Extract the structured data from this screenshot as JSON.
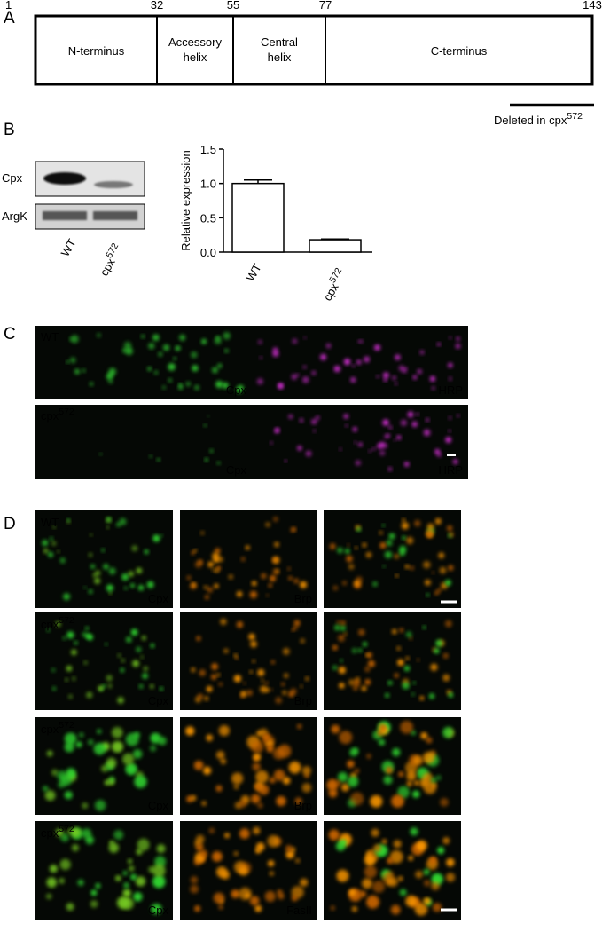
{
  "panel_a": {
    "label": "A",
    "residues": [
      1,
      32,
      55,
      77,
      143
    ],
    "domains": [
      "N-terminus",
      [
        "Accessory",
        "helix"
      ],
      [
        "Central",
        "helix"
      ],
      "C-terminus"
    ],
    "deleted": {
      "text": "Deleted in cpx",
      "sup": "572"
    }
  },
  "panel_b": {
    "label": "B",
    "blot_rows": [
      "Cpx",
      "ArgK"
    ],
    "lanes": [
      "WT",
      {
        "text": "cpx",
        "sup": "572"
      }
    ],
    "chart_data": {
      "type": "bar",
      "y_label": "Relative expression",
      "categories": [
        "WT",
        {
          "text": "cpx",
          "sup": "572"
        }
      ],
      "values": [
        1.0,
        0.18
      ],
      "errors": [
        0.05,
        0.01
      ],
      "color": "#ffffff",
      "ylim": [
        0,
        1.5
      ],
      "yticks": [
        {
          "value": 0,
          "label": "0.0"
        },
        {
          "value": 0.5,
          "label": "0.5"
        },
        {
          "value": 1,
          "label": "1.0"
        },
        {
          "value": 1.5,
          "label": "1.5"
        }
      ]
    }
  },
  "panel_c": {
    "label": "C",
    "rows": [
      {
        "genotype": "WT",
        "stains": [
          "Cpx",
          "HRP"
        ]
      },
      {
        "genotype": {
          "text": "cpx",
          "sup": "572"
        },
        "stains": [
          "Cpx",
          "HRP"
        ]
      }
    ]
  },
  "panel_d": {
    "label": "D",
    "rows": [
      {
        "genotype": "WT",
        "stains": [
          "Cpx",
          "Brp"
        ]
      },
      {
        "genotype": {
          "text": "cpx",
          "sup": "572"
        },
        "stains": [
          "Cpx",
          "Brp"
        ]
      },
      {
        "genotype": {
          "text": "cpx",
          "sup": "572"
        },
        "stains": [
          "Cpx",
          "Brp"
        ]
      },
      {
        "genotype": {
          "text": "cpx",
          "sup": "572"
        },
        "stains": [
          "Cpx",
          "FasII"
        ]
      }
    ]
  }
}
